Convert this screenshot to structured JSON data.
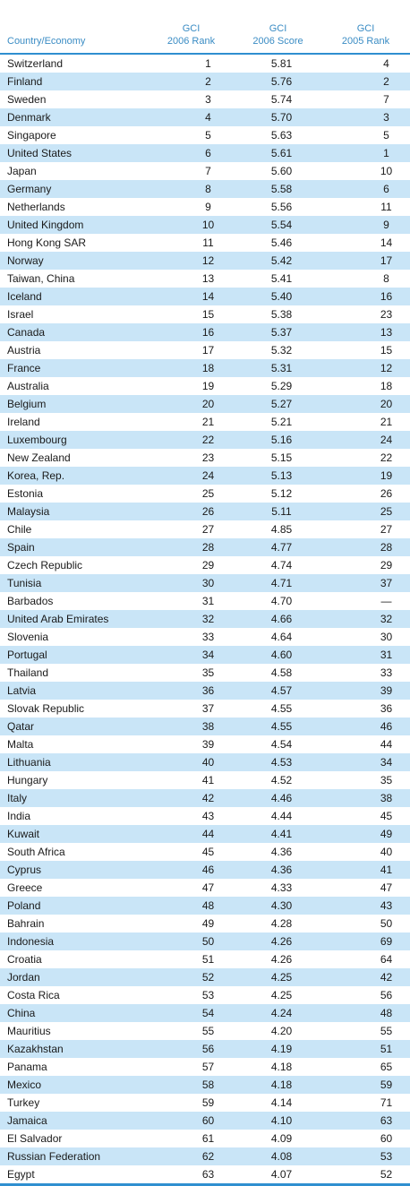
{
  "header": {
    "country_label": "Country/Economy",
    "col2": [
      "GCI",
      "2006 Rank"
    ],
    "col3": [
      "GCI",
      "2006 Score"
    ],
    "col4": [
      "GCI",
      "2005 Rank"
    ]
  },
  "colors": {
    "accent": "#2f8fd0",
    "header_text": "#3a8cc4",
    "stripe": "#c9e5f7"
  },
  "rows": [
    [
      "Switzerland",
      "1",
      "5.81",
      "4"
    ],
    [
      "Finland",
      "2",
      "5.76",
      "2"
    ],
    [
      "Sweden",
      "3",
      "5.74",
      "7"
    ],
    [
      "Denmark",
      "4",
      "5.70",
      "3"
    ],
    [
      "Singapore",
      "5",
      "5.63",
      "5"
    ],
    [
      "United States",
      "6",
      "5.61",
      "1"
    ],
    [
      "Japan",
      "7",
      "5.60",
      "10"
    ],
    [
      "Germany",
      "8",
      "5.58",
      "6"
    ],
    [
      "Netherlands",
      "9",
      "5.56",
      "11"
    ],
    [
      "United Kingdom",
      "10",
      "5.54",
      "9"
    ],
    [
      "Hong Kong SAR",
      "11",
      "5.46",
      "14"
    ],
    [
      "Norway",
      "12",
      "5.42",
      "17"
    ],
    [
      "Taiwan, China",
      "13",
      "5.41",
      "8"
    ],
    [
      "Iceland",
      "14",
      "5.40",
      "16"
    ],
    [
      "Israel",
      "15",
      "5.38",
      "23"
    ],
    [
      "Canada",
      "16",
      "5.37",
      "13"
    ],
    [
      "Austria",
      "17",
      "5.32",
      "15"
    ],
    [
      "France",
      "18",
      "5.31",
      "12"
    ],
    [
      "Australia",
      "19",
      "5.29",
      "18"
    ],
    [
      "Belgium",
      "20",
      "5.27",
      "20"
    ],
    [
      "Ireland",
      "21",
      "5.21",
      "21"
    ],
    [
      "Luxembourg",
      "22",
      "5.16",
      "24"
    ],
    [
      "New Zealand",
      "23",
      "5.15",
      "22"
    ],
    [
      "Korea, Rep.",
      "24",
      "5.13",
      "19"
    ],
    [
      "Estonia",
      "25",
      "5.12",
      "26"
    ],
    [
      "Malaysia",
      "26",
      "5.11",
      "25"
    ],
    [
      "Chile",
      "27",
      "4.85",
      "27"
    ],
    [
      "Spain",
      "28",
      "4.77",
      "28"
    ],
    [
      "Czech Republic",
      "29",
      "4.74",
      "29"
    ],
    [
      "Tunisia",
      "30",
      "4.71",
      "37"
    ],
    [
      "Barbados",
      "31",
      "4.70",
      "—"
    ],
    [
      "United Arab Emirates",
      "32",
      "4.66",
      "32"
    ],
    [
      "Slovenia",
      "33",
      "4.64",
      "30"
    ],
    [
      "Portugal",
      "34",
      "4.60",
      "31"
    ],
    [
      "Thailand",
      "35",
      "4.58",
      "33"
    ],
    [
      "Latvia",
      "36",
      "4.57",
      "39"
    ],
    [
      "Slovak Republic",
      "37",
      "4.55",
      "36"
    ],
    [
      "Qatar",
      "38",
      "4.55",
      "46"
    ],
    [
      "Malta",
      "39",
      "4.54",
      "44"
    ],
    [
      "Lithuania",
      "40",
      "4.53",
      "34"
    ],
    [
      "Hungary",
      "41",
      "4.52",
      "35"
    ],
    [
      "Italy",
      "42",
      "4.46",
      "38"
    ],
    [
      "India",
      "43",
      "4.44",
      "45"
    ],
    [
      "Kuwait",
      "44",
      "4.41",
      "49"
    ],
    [
      "South Africa",
      "45",
      "4.36",
      "40"
    ],
    [
      "Cyprus",
      "46",
      "4.36",
      "41"
    ],
    [
      "Greece",
      "47",
      "4.33",
      "47"
    ],
    [
      "Poland",
      "48",
      "4.30",
      "43"
    ],
    [
      "Bahrain",
      "49",
      "4.28",
      "50"
    ],
    [
      "Indonesia",
      "50",
      "4.26",
      "69"
    ],
    [
      "Croatia",
      "51",
      "4.26",
      "64"
    ],
    [
      "Jordan",
      "52",
      "4.25",
      "42"
    ],
    [
      "Costa Rica",
      "53",
      "4.25",
      "56"
    ],
    [
      "China",
      "54",
      "4.24",
      "48"
    ],
    [
      "Mauritius",
      "55",
      "4.20",
      "55"
    ],
    [
      "Kazakhstan",
      "56",
      "4.19",
      "51"
    ],
    [
      "Panama",
      "57",
      "4.18",
      "65"
    ],
    [
      "Mexico",
      "58",
      "4.18",
      "59"
    ],
    [
      "Turkey",
      "59",
      "4.14",
      "71"
    ],
    [
      "Jamaica",
      "60",
      "4.10",
      "63"
    ],
    [
      "El Salvador",
      "61",
      "4.09",
      "60"
    ],
    [
      "Russian Federation",
      "62",
      "4.08",
      "53"
    ],
    [
      "Egypt",
      "63",
      "4.07",
      "52"
    ]
  ]
}
